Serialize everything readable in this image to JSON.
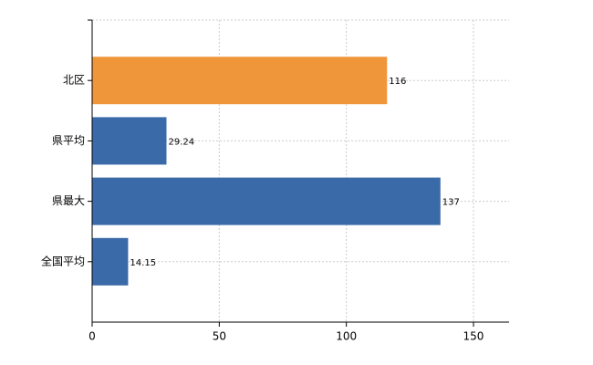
{
  "chart_data": {
    "type": "hbar",
    "categories": [
      "北区",
      "県平均",
      "県最大",
      "全国平均"
    ],
    "values": [
      116,
      29.24,
      137,
      14.15
    ],
    "colors": [
      "#f0963a",
      "#3a6aa8",
      "#3a6aa8",
      "#3a6aa8"
    ],
    "xlim": [
      0,
      164
    ],
    "xticks": [
      0,
      50,
      100,
      150
    ],
    "grid": true
  }
}
